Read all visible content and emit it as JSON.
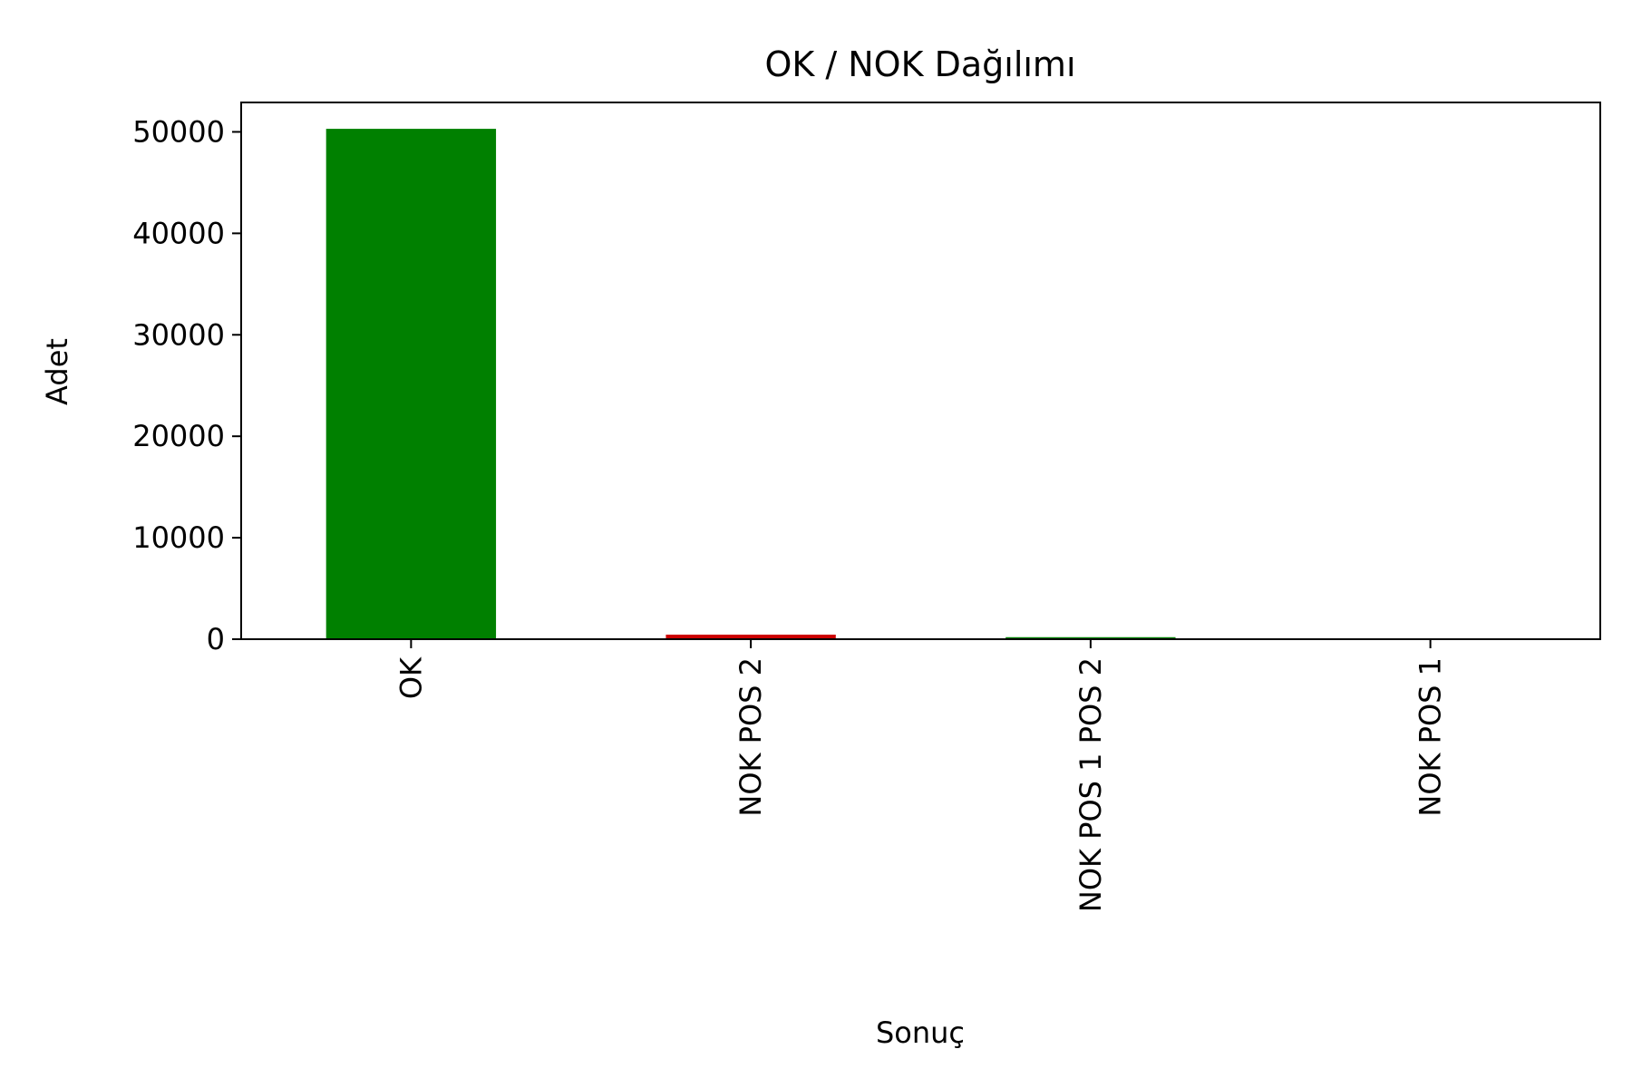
{
  "chart_data": {
    "type": "bar",
    "title": "OK / NOK Dağılımı",
    "xlabel": "Sonuç",
    "ylabel": "Adet",
    "categories": [
      "OK",
      "NOK POS 2",
      "NOK POS 1 POS 2",
      "NOK POS 1"
    ],
    "values": [
      50300,
      450,
      200,
      30
    ],
    "colors": [
      "#008000",
      "#cc0000",
      "#008000",
      "#cc0000"
    ],
    "ylim": [
      0,
      52900
    ],
    "yticks": [
      0,
      10000,
      20000,
      30000,
      40000,
      50000
    ],
    "ytick_labels": [
      "0",
      "10000",
      "20000",
      "30000",
      "40000",
      "50000"
    ],
    "grid": false,
    "legend": "none"
  }
}
